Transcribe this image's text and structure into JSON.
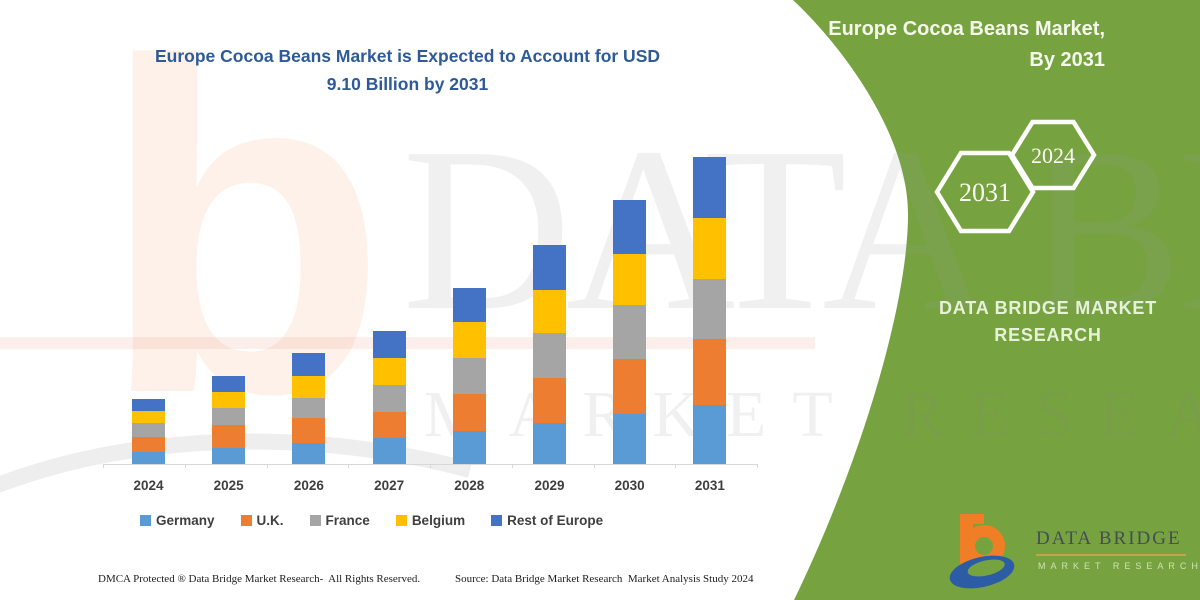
{
  "watermark": {
    "letter": "b",
    "line1": "DATA BRIDGE",
    "line2": "MARKET RESEARCH"
  },
  "chart": {
    "title_line1": "Europe Cocoa Beans Market is Expected to Account for USD",
    "title_line2": "9.10 Billion by 2031"
  },
  "chart_data": {
    "type": "bar",
    "stacked": true,
    "title": "Europe Cocoa Beans Market is Expected to Account for USD 9.10 Billion by 2031",
    "unit": "USD Billion",
    "categories": [
      "2024",
      "2025",
      "2026",
      "2027",
      "2028",
      "2029",
      "2030",
      "2031"
    ],
    "series": [
      {
        "name": "Germany",
        "color": "#5B9BD5",
        "values": [
          0.35,
          0.47,
          0.62,
          0.77,
          0.97,
          1.22,
          1.48,
          1.75
        ]
      },
      {
        "name": "U.K.",
        "color": "#ED7D31",
        "values": [
          0.45,
          0.68,
          0.74,
          0.77,
          1.09,
          1.33,
          1.63,
          1.95
        ]
      },
      {
        "name": "France",
        "color": "#A5A5A5",
        "values": [
          0.41,
          0.5,
          0.59,
          0.79,
          1.09,
          1.33,
          1.6,
          1.78
        ]
      },
      {
        "name": "Belgium",
        "color": "#FFC000",
        "values": [
          0.36,
          0.47,
          0.66,
          0.8,
          1.07,
          1.28,
          1.51,
          1.8
        ]
      },
      {
        "name": "Rest of Europe",
        "color": "#4472C4",
        "values": [
          0.36,
          0.48,
          0.67,
          0.8,
          1.0,
          1.33,
          1.6,
          1.82
        ]
      }
    ],
    "totals": [
      1.93,
      2.6,
      3.28,
      3.93,
      5.22,
      6.49,
      7.82,
      9.1
    ],
    "ylim": [
      0,
      9.5
    ],
    "grid": false,
    "legend_position": "bottom",
    "xlabel": "",
    "ylabel": ""
  },
  "side_panel": {
    "title_line1": "Europe Cocoa Beans Market,",
    "title_line2": "By 2031",
    "hexagons": [
      "2031",
      "2024"
    ],
    "brand_line1": "DATA BRIDGE MARKET",
    "brand_line2": "RESEARCH",
    "bg_color": "#76A33F",
    "logo_name": "DATA BRIDGE",
    "logo_sub": "MARKET RESEARCH"
  },
  "footer": {
    "dmca": "DMCA Protected ® Data Bridge Market Research-  All Rights Reserved.",
    "source": "Source: Data Bridge Market Research  Market Analysis Study 2024"
  }
}
